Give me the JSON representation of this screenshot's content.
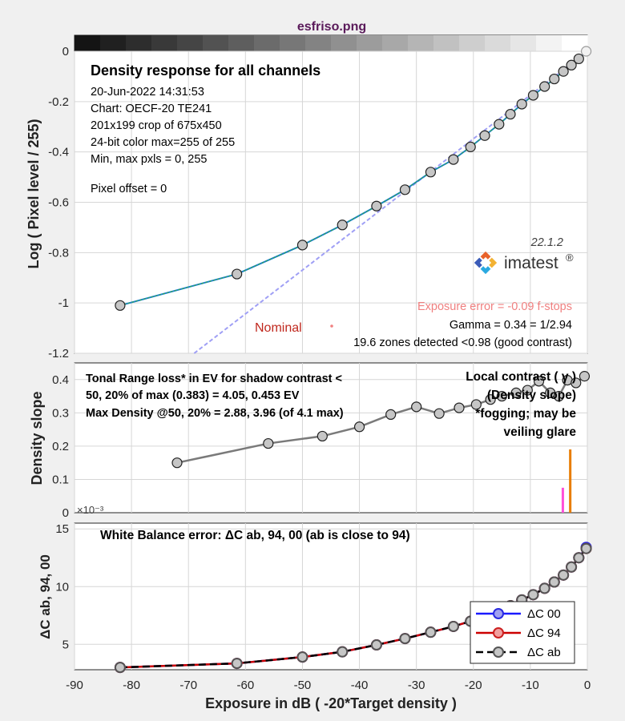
{
  "window": {
    "title": "esfriso.png"
  },
  "colors": {
    "title": "#5a1a5a",
    "nominal": "#c0281e",
    "exposure_error": "#f08080",
    "orange": "#e87d00",
    "magenta": "#ff4fd8"
  },
  "chart_data": [
    {
      "type": "line",
      "title": "Density response for all channels",
      "ylabel": "Log ( Pixel level / 255)",
      "xlim": [
        -90,
        0
      ],
      "ylim": [
        -1.2,
        0
      ],
      "yticks": [
        "0",
        "-0.2",
        "-0.4",
        "-0.6",
        "-0.8",
        "-1",
        "-1.2"
      ],
      "info_lines": [
        "20-Jun-2022 14:31:53",
        "Chart: OECF-20  TE241",
        "201x199 crop of 675x450",
        "24-bit color  max=255 of 255",
        "Min, max pxls = 0, 255",
        "",
        "Pixel offset = 0"
      ],
      "version": "22.1.2",
      "logo": "imatest",
      "nominal_label": "Nominal",
      "exposure_error": "Exposure error = -0.09 f-stops",
      "gamma": "Gamma = 0.34 = 1/2.94",
      "zones": "19.6 zones detected <0.98 (good contrast)",
      "series": [
        {
          "x": [
            -82,
            -61.5,
            -50,
            -43,
            -37,
            -32,
            -27.5,
            -23.5,
            -20.5,
            -18,
            -15.5,
            -13.5,
            -11.5,
            -9.5,
            -7.5,
            -5.8,
            -4.2,
            -2.8,
            -1.5,
            -0.2
          ],
          "y": [
            -1.01,
            -0.885,
            -0.77,
            -0.69,
            -0.615,
            -0.55,
            -0.48,
            -0.43,
            -0.38,
            -0.335,
            -0.29,
            -0.25,
            -0.21,
            -0.175,
            -0.14,
            -0.11,
            -0.08,
            -0.055,
            -0.03,
            0.0
          ]
        }
      ],
      "nominal_line": {
        "x": [
          -69,
          0
        ],
        "y": [
          -1.2,
          0
        ]
      }
    },
    {
      "type": "line",
      "ylabel": "Density slope",
      "xlim": [
        -90,
        0
      ],
      "ylim": [
        0,
        0.45
      ],
      "yticks": [
        "0",
        "0.1",
        "0.2",
        "0.3",
        "0.4"
      ],
      "annotation_lines": [
        "Tonal Range loss* in EV for shadow contrast <",
        "50, 20% of max (0.383) = 4.05, 0.453 EV",
        "Max Density @50, 20% = 2.88, 3.96  (of 4.1 max)"
      ],
      "right_labels": [
        "Local contrast ( γ )",
        "(Density slope)",
        "*fogging; may be",
        "veiling glare"
      ],
      "exponent_label": "×10⁻³",
      "series": [
        {
          "x": [
            -72,
            -56,
            -46.5,
            -40,
            -34.5,
            -30,
            -26,
            -22.5,
            -19.5,
            -17,
            -15,
            -12.5,
            -10.5,
            -8.5,
            -6.5,
            -5,
            -3.5,
            -2,
            -0.5
          ],
          "y": [
            0.15,
            0.208,
            0.23,
            0.258,
            0.295,
            0.318,
            0.298,
            0.315,
            0.325,
            0.34,
            0.35,
            0.36,
            0.368,
            0.395,
            0.36,
            0.35,
            0.398,
            0.39,
            0.41
          ]
        }
      ],
      "bars": [
        {
          "x": -4.3,
          "value": 0.075,
          "color": "#ff4fd8"
        },
        {
          "x": -3.0,
          "value": 0.19,
          "color": "#e87d00"
        }
      ]
    },
    {
      "type": "line",
      "title": "White Balance error:  ΔC ab, 94, 00 (ab is close to 94)",
      "xlabel": "Exposure in dB ( -20*Target density )",
      "ylabel": "ΔC ab, 94, 00",
      "xlim": [
        -90,
        0
      ],
      "ylim": [
        2.8,
        15.5
      ],
      "xticks": [
        "-90",
        "-80",
        "-70",
        "-60",
        "-50",
        "-40",
        "-30",
        "-20",
        "-10",
        "0"
      ],
      "yticks": [
        "5",
        "10",
        "15"
      ],
      "legend": {
        "position": "bottom-right",
        "entries": [
          "ΔC 00",
          "ΔC 94",
          "ΔC ab"
        ]
      },
      "series": [
        {
          "name": "ΔC 00",
          "color": "#1a1aff",
          "x": [
            -82,
            -61.5,
            -50,
            -43,
            -37,
            -32,
            -27.5,
            -23.5,
            -20.5,
            -18,
            -15.5,
            -13.5,
            -11.5,
            -9.5,
            -7.5,
            -5.8,
            -4.2,
            -2.8,
            -1.5,
            -0.2
          ],
          "y": [
            3.0,
            3.35,
            3.9,
            4.35,
            4.95,
            5.5,
            6.05,
            6.55,
            7.0,
            7.35,
            7.85,
            8.35,
            8.85,
            9.3,
            9.85,
            10.4,
            11.0,
            11.7,
            12.5,
            13.4
          ]
        },
        {
          "name": "ΔC 94",
          "color": "#cc0000",
          "x": [
            -82,
            -61.5,
            -50,
            -43,
            -37,
            -32,
            -27.5,
            -23.5,
            -20.5,
            -18,
            -15.5,
            -13.5,
            -11.5,
            -9.5,
            -7.5,
            -5.8,
            -4.2,
            -2.8,
            -1.5,
            -0.2
          ],
          "y": [
            3.0,
            3.35,
            3.9,
            4.35,
            4.95,
            5.5,
            6.05,
            6.55,
            7.0,
            7.35,
            7.85,
            8.35,
            8.85,
            9.3,
            9.85,
            10.4,
            11.0,
            11.7,
            12.5,
            13.3
          ]
        },
        {
          "name": "ΔC ab",
          "color": "#000000",
          "x": [
            -82,
            -61.5,
            -50,
            -43,
            -37,
            -32,
            -27.5,
            -23.5,
            -20.5,
            -18,
            -15.5,
            -13.5,
            -11.5,
            -9.5,
            -7.5,
            -5.8,
            -4.2,
            -2.8,
            -1.5,
            -0.2
          ],
          "y": [
            3.0,
            3.35,
            3.9,
            4.35,
            4.95,
            5.5,
            6.05,
            6.55,
            7.0,
            7.35,
            7.85,
            8.35,
            8.85,
            9.3,
            9.85,
            10.4,
            11.0,
            11.7,
            12.5,
            13.3
          ]
        }
      ]
    }
  ]
}
